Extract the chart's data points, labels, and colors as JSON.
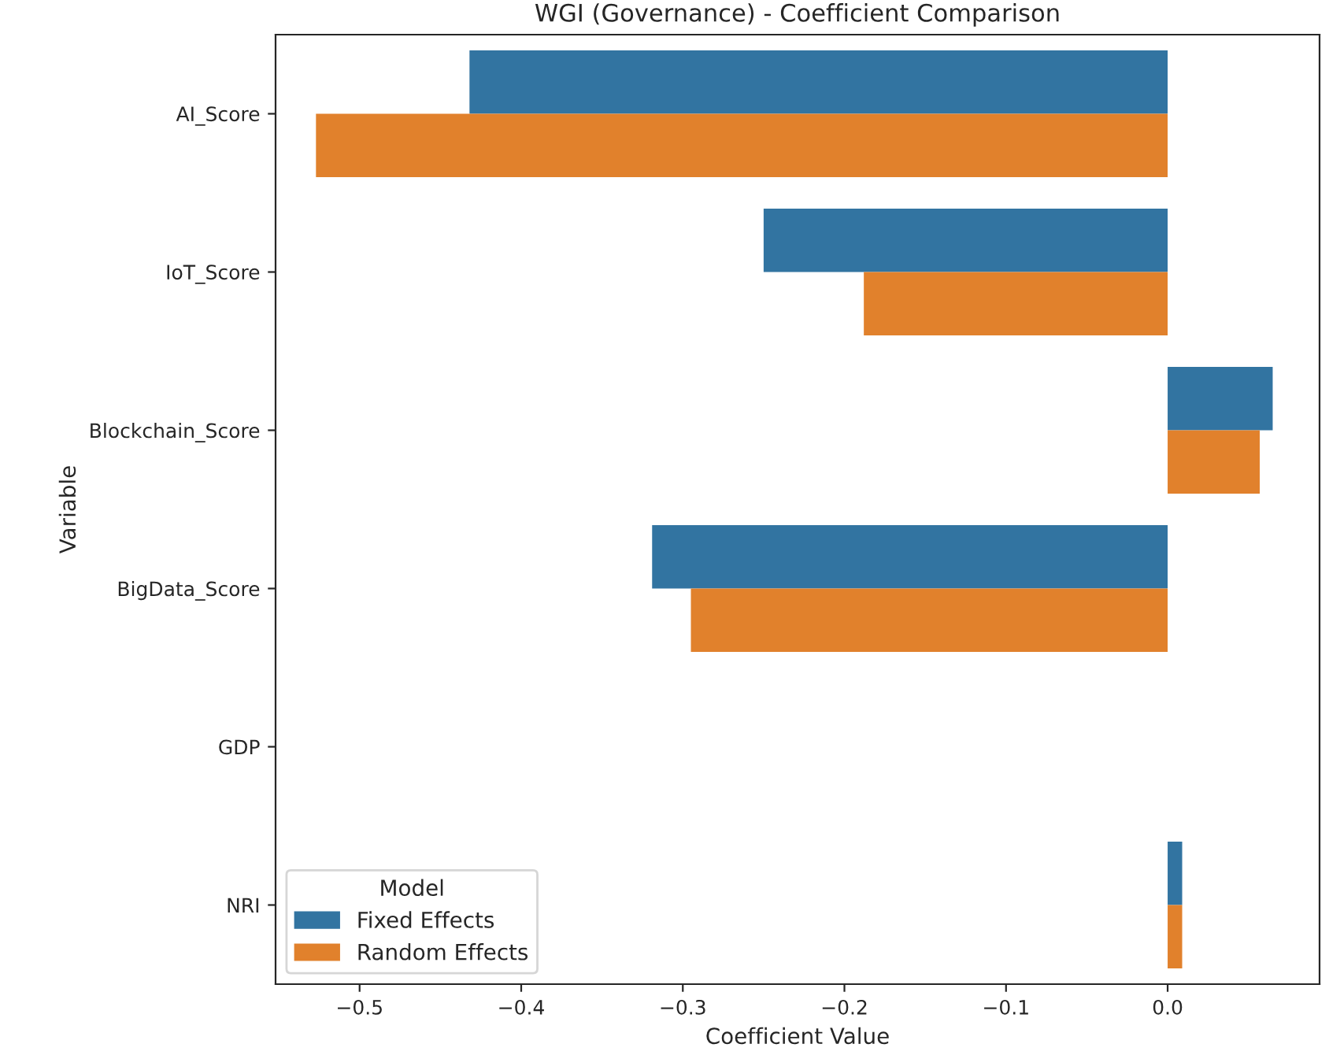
{
  "chart_data": {
    "type": "bar",
    "orientation": "horizontal",
    "title": "WGI (Governance) - Coefficient Comparison",
    "xlabel": "Coefficient Value",
    "ylabel": "Variable",
    "legend_title": "Model",
    "legend": "bottom left",
    "categories": [
      "AI_Score",
      "IoT_Score",
      "Blockchain_Score",
      "BigData_Score",
      "GDP",
      "NRI"
    ],
    "series": [
      {
        "name": "Fixed Effects",
        "color": "#3274a1",
        "values": [
          -0.432,
          -0.25,
          0.065,
          -0.319,
          null,
          0.009
        ]
      },
      {
        "name": "Random Effects",
        "color": "#e1812c",
        "values": [
          -0.527,
          -0.188,
          0.057,
          -0.295,
          null,
          0.009
        ]
      }
    ],
    "xlim": [
      -0.552,
      0.094
    ],
    "xticks": [
      {
        "value": -0.5,
        "label": "−0.5"
      },
      {
        "value": -0.4,
        "label": "−0.4"
      },
      {
        "value": -0.3,
        "label": "−0.3"
      },
      {
        "value": -0.2,
        "label": "−0.2"
      },
      {
        "value": -0.1,
        "label": "−0.1"
      },
      {
        "value": 0.0,
        "label": "0.0"
      }
    ],
    "grid": false
  }
}
